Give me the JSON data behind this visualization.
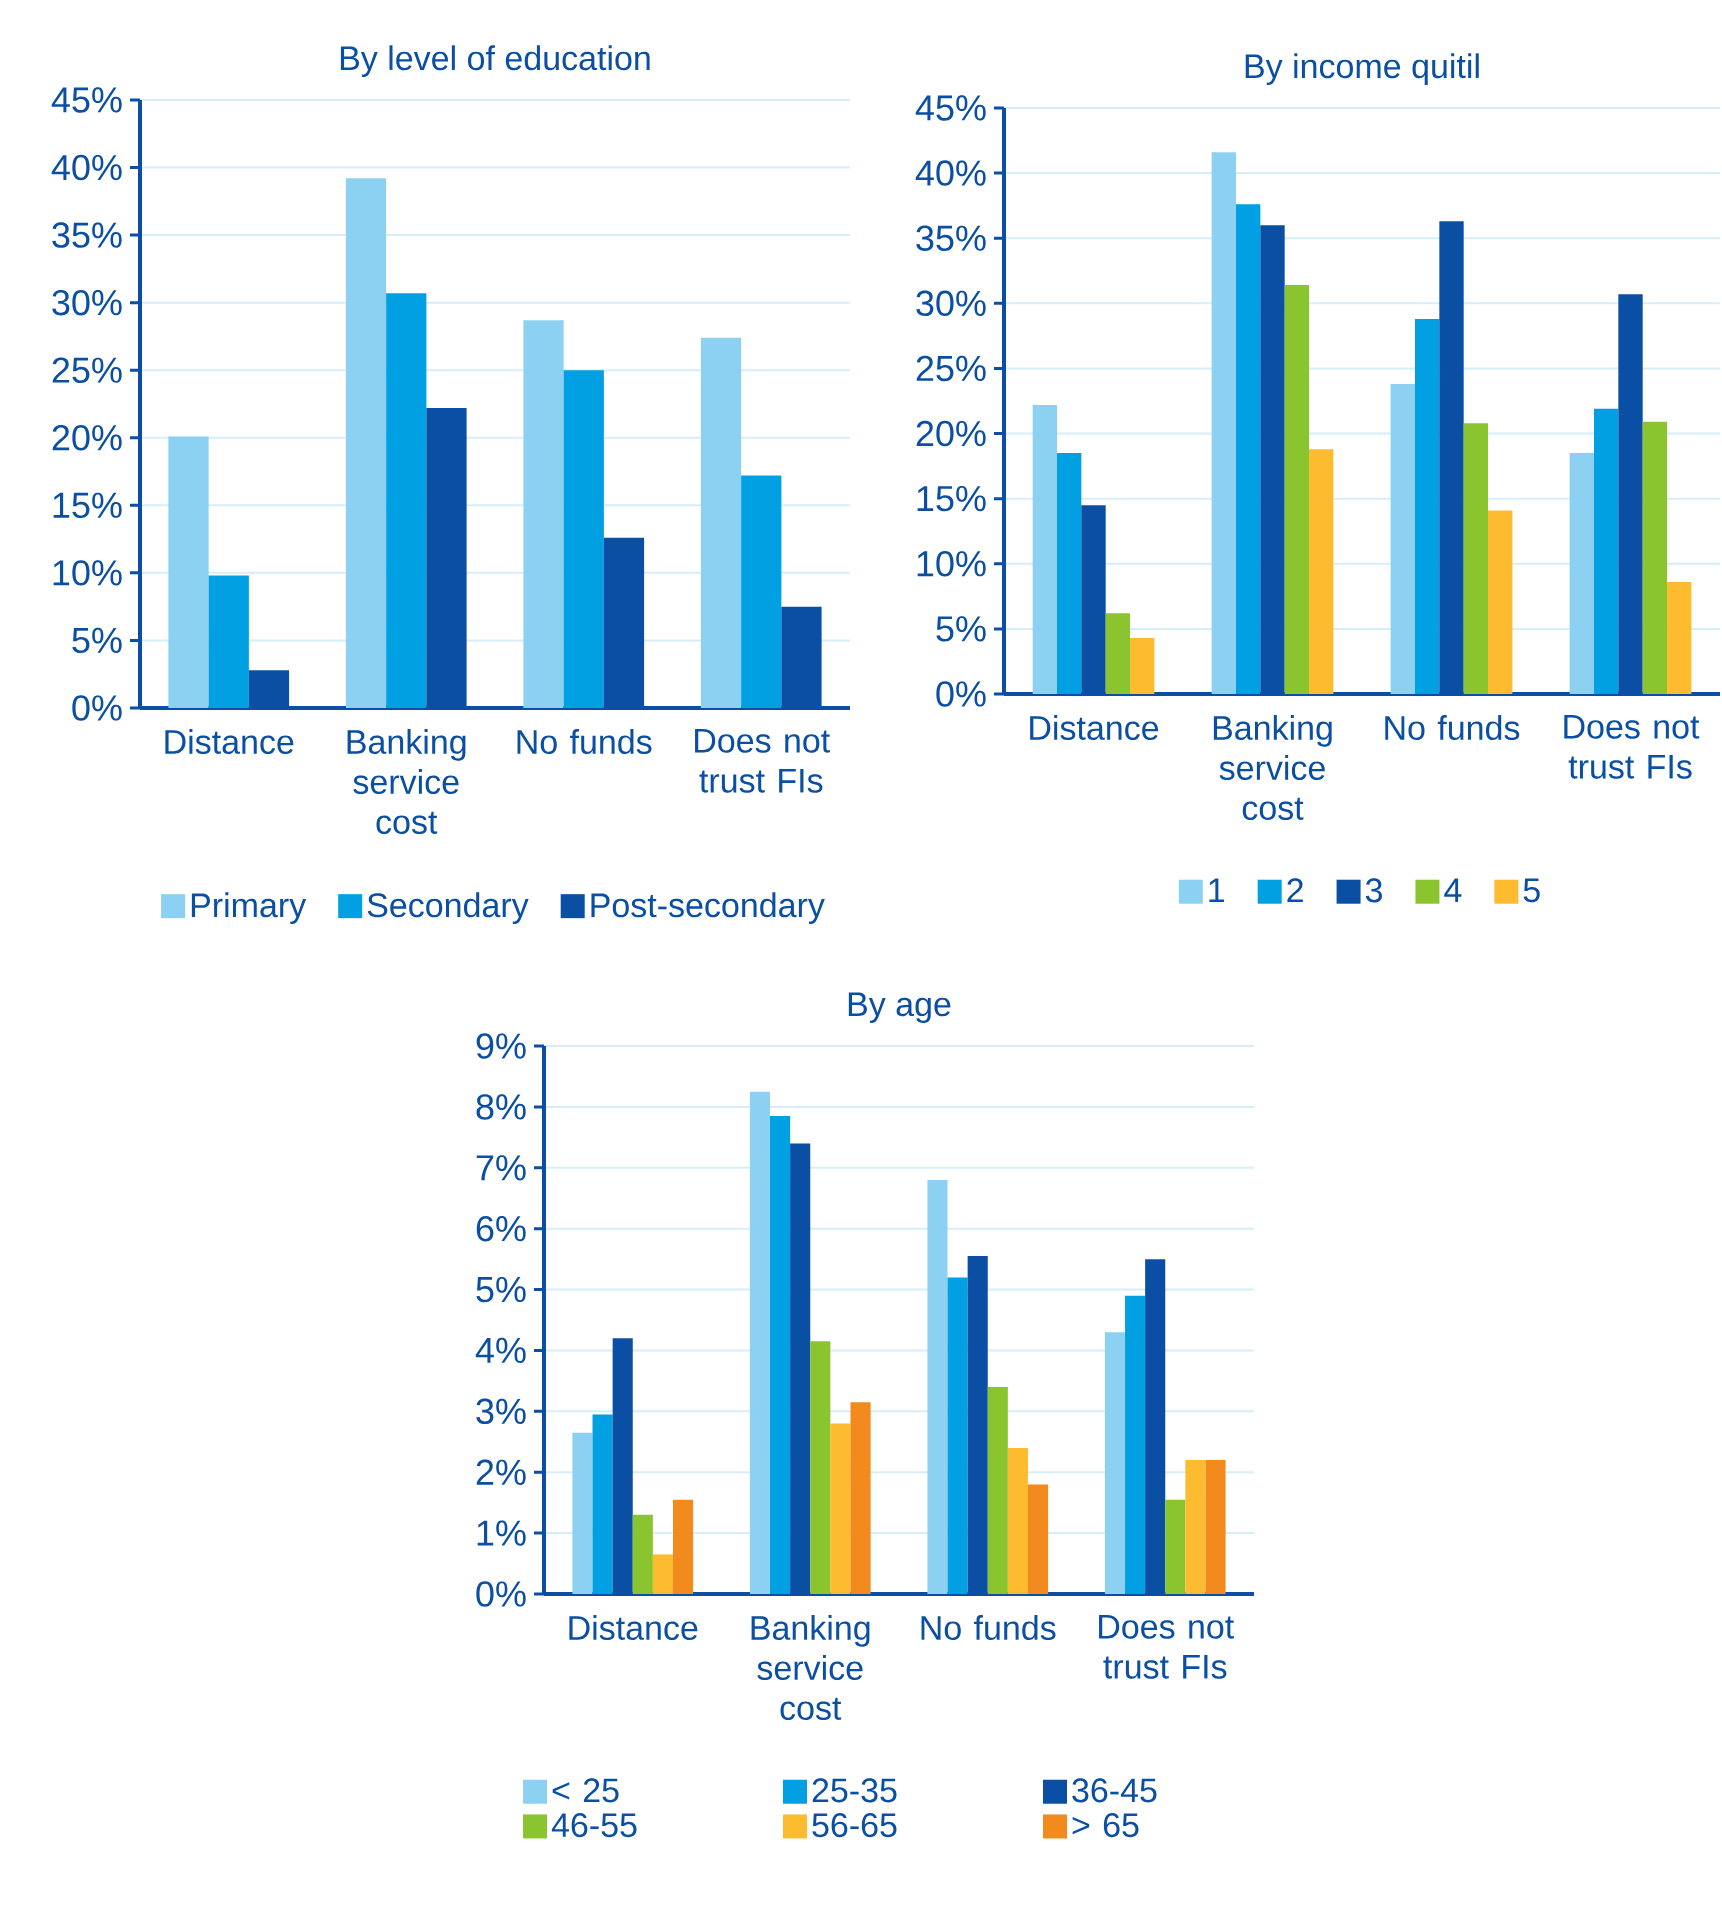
{
  "chart_data": [
    {
      "type": "bar",
      "title": "By level of education",
      "categories": [
        "Distance",
        "Banking service cost",
        "No funds",
        "Does not trust FIs"
      ],
      "series": [
        {
          "name": "Primary",
          "color": "#8dd1f2",
          "values": [
            20.1,
            39.2,
            28.7,
            27.4
          ]
        },
        {
          "name": "Secondary",
          "color": "#00a0e2",
          "values": [
            9.8,
            30.7,
            25.0,
            17.2
          ]
        },
        {
          "name": "Post-secondary",
          "color": "#0a4fa3",
          "values": [
            2.8,
            22.2,
            12.6,
            7.5
          ]
        }
      ],
      "ylim": [
        0,
        45
      ],
      "yticks": [
        {
          "value": 0,
          "label": "0%"
        },
        {
          "value": 5,
          "label": "5%"
        },
        {
          "value": 10,
          "label": "10%"
        },
        {
          "value": 15,
          "label": "15%"
        },
        {
          "value": 20,
          "label": "20%"
        },
        {
          "value": 25,
          "label": "25%"
        },
        {
          "value": 30,
          "label": "30%"
        },
        {
          "value": 35,
          "label": "35%"
        },
        {
          "value": 40,
          "label": "40%"
        },
        {
          "value": 45,
          "label": "45%"
        }
      ],
      "grid": "y",
      "legend": "bottom"
    },
    {
      "type": "bar",
      "title": "By income quitil",
      "categories": [
        "Distance",
        "Banking service cost",
        "No funds",
        "Does not trust FIs"
      ],
      "series": [
        {
          "name": "1",
          "color": "#8dd1f2",
          "values": [
            22.2,
            41.6,
            23.8,
            18.5
          ]
        },
        {
          "name": "2",
          "color": "#00a0e2",
          "values": [
            18.5,
            37.6,
            28.8,
            21.9
          ]
        },
        {
          "name": "3",
          "color": "#0a4fa3",
          "values": [
            14.5,
            36.0,
            36.3,
            30.7
          ]
        },
        {
          "name": "4",
          "color": "#8ac530",
          "values": [
            6.2,
            31.4,
            20.8,
            20.9
          ]
        },
        {
          "name": "5",
          "color": "#fdbb30",
          "values": [
            4.3,
            18.8,
            14.1,
            8.6
          ]
        }
      ],
      "ylim": [
        0,
        45
      ],
      "yticks": [
        {
          "value": 0,
          "label": "0%"
        },
        {
          "value": 5,
          "label": "5%"
        },
        {
          "value": 10,
          "label": "10%"
        },
        {
          "value": 15,
          "label": "15%"
        },
        {
          "value": 20,
          "label": "20%"
        },
        {
          "value": 25,
          "label": "25%"
        },
        {
          "value": 30,
          "label": "30%"
        },
        {
          "value": 35,
          "label": "35%"
        },
        {
          "value": 40,
          "label": "40%"
        },
        {
          "value": 45,
          "label": "45%"
        }
      ],
      "grid": "y",
      "legend": "bottom"
    },
    {
      "type": "bar",
      "title": "By age",
      "categories": [
        "Distance",
        "Banking service cost",
        "No funds",
        "Does not trust FIs"
      ],
      "series": [
        {
          "name": "< 25",
          "color": "#8dd1f2",
          "values": [
            2.65,
            8.25,
            6.8,
            4.3
          ]
        },
        {
          "name": "25-35",
          "color": "#00a0e2",
          "values": [
            2.95,
            7.85,
            5.2,
            4.9
          ]
        },
        {
          "name": "36-45",
          "color": "#0a4fa3",
          "values": [
            4.2,
            7.4,
            5.55,
            5.5
          ]
        },
        {
          "name": "46-55",
          "color": "#8ac530",
          "values": [
            1.3,
            4.15,
            3.4,
            1.55
          ]
        },
        {
          "name": "56-65",
          "color": "#fdbb30",
          "values": [
            0.65,
            2.8,
            2.4,
            2.2
          ]
        },
        {
          "name": "> 65",
          "color": "#f28a1e",
          "values": [
            1.55,
            3.15,
            1.8,
            2.2
          ]
        }
      ],
      "ylim": [
        0,
        9
      ],
      "yticks": [
        {
          "value": 0,
          "label": "0%"
        },
        {
          "value": 1,
          "label": "1%"
        },
        {
          "value": 2,
          "label": "2%"
        },
        {
          "value": 3,
          "label": "3%"
        },
        {
          "value": 4,
          "label": "4%"
        },
        {
          "value": 5,
          "label": "5%"
        },
        {
          "value": 6,
          "label": "6%"
        },
        {
          "value": 7,
          "label": "7%"
        },
        {
          "value": 8,
          "label": "8%"
        },
        {
          "value": 9,
          "label": "9%"
        }
      ],
      "grid": "y",
      "legend": "bottom"
    }
  ]
}
